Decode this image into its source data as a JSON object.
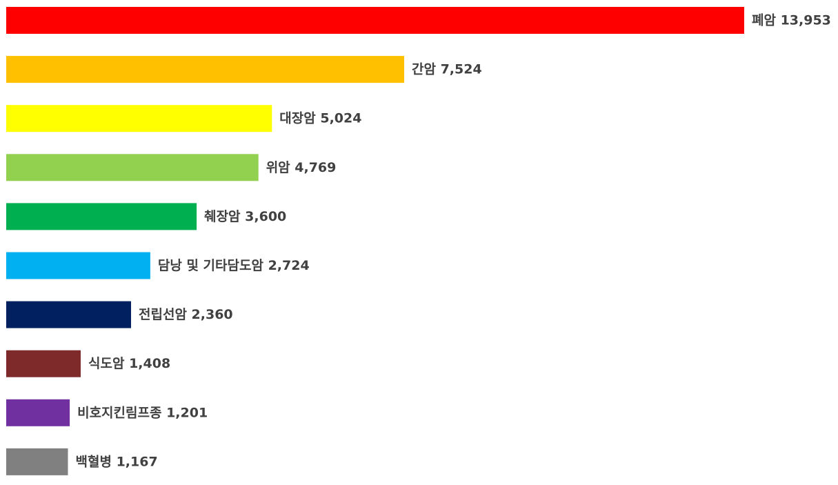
{
  "chart_data": {
    "type": "bar",
    "orientation": "horizontal",
    "title": "",
    "xlabel": "",
    "ylabel": "",
    "xlim": [
      0,
      13953
    ],
    "grid": false,
    "legend": "none",
    "categories": [
      "폐암",
      "간암",
      "대장암",
      "위암",
      "췌장암",
      "담낭 및 기타담도암",
      "전립선암",
      "식도암",
      "비호지킨림프종",
      "백혈병"
    ],
    "values": [
      13953,
      7524,
      5024,
      4769,
      3600,
      2724,
      2360,
      1408,
      1201,
      1167
    ],
    "value_labels": [
      "13,953",
      "7,524",
      "5,024",
      "4,769",
      "3,600",
      "2,724",
      "2,360",
      "1,408",
      "1,201",
      "1,167"
    ],
    "colors": [
      "#FF0000",
      "#FFC000",
      "#FFFF00",
      "#92D050",
      "#00B050",
      "#00B0F0",
      "#002060",
      "#7F2A2A",
      "#7030A0",
      "#808080"
    ],
    "label_color": "#404040"
  }
}
